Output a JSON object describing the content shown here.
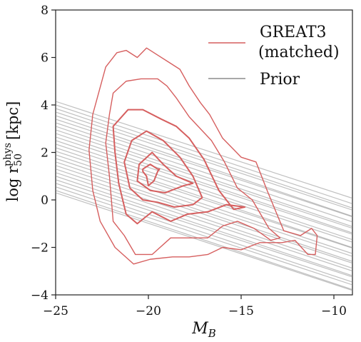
{
  "chart_data": {
    "type": "line",
    "title": "",
    "xlabel_main": "M",
    "xlabel_sub": "B",
    "ylabel_main": "log r",
    "ylabel_sub": "50",
    "ylabel_sup": "phys",
    "ylabel_unit": "[kpc]",
    "xlim": [
      -25,
      -9
    ],
    "ylim": [
      -4,
      8
    ],
    "xticks": [
      -25,
      -20,
      -15,
      -10
    ],
    "xtick_labels": [
      "−25",
      "−20",
      "−15",
      "−10"
    ],
    "yticks": [
      -4,
      -2,
      0,
      2,
      4,
      6,
      8
    ],
    "ytick_labels": [
      "−4",
      "−2",
      "0",
      "2",
      "4",
      "6",
      "8"
    ],
    "grid": false,
    "legend_position": "top-right",
    "colors": {
      "great3": "#d65f5f",
      "prior": "#8c8c8c"
    },
    "legend": [
      {
        "label_line1": "GREAT3",
        "label_line2": "(matched)",
        "color": "#d65f5f"
      },
      {
        "label_line1": "Prior",
        "label_line2": "",
        "color": "#8c8c8c"
      }
    ],
    "great3_contours": [
      {
        "level": 1,
        "points": [
          [
            -23.0,
            3.6
          ],
          [
            -22.3,
            5.6
          ],
          [
            -21.7,
            6.2
          ],
          [
            -21.2,
            6.3
          ],
          [
            -20.6,
            6.0
          ],
          [
            -20.1,
            6.4
          ],
          [
            -19.5,
            6.1
          ],
          [
            -18.9,
            5.8
          ],
          [
            -18.3,
            5.5
          ],
          [
            -17.8,
            4.8
          ],
          [
            -17.2,
            4.1
          ],
          [
            -16.7,
            3.6
          ],
          [
            -16.0,
            2.6
          ],
          [
            -15.0,
            1.8
          ],
          [
            -14.2,
            1.6
          ],
          [
            -13.6,
            0.4
          ],
          [
            -12.7,
            -1.3
          ],
          [
            -11.8,
            -1.5
          ],
          [
            -11.2,
            -1.2
          ],
          [
            -10.9,
            -1.5
          ],
          [
            -11.0,
            -2.3
          ],
          [
            -11.4,
            -2.3
          ],
          [
            -12.1,
            -1.7
          ],
          [
            -12.8,
            -1.8
          ],
          [
            -14.0,
            -1.8
          ],
          [
            -15.0,
            -2.1
          ],
          [
            -16.0,
            -2.0
          ],
          [
            -16.8,
            -2.3
          ],
          [
            -17.8,
            -2.4
          ],
          [
            -18.7,
            -2.4
          ],
          [
            -19.9,
            -2.5
          ],
          [
            -20.8,
            -2.7
          ],
          [
            -21.8,
            -2.0
          ],
          [
            -22.6,
            -0.9
          ],
          [
            -23.0,
            0.4
          ],
          [
            -23.2,
            2.1
          ]
        ]
      },
      {
        "level": 2,
        "points": [
          [
            -22.1,
            3.6
          ],
          [
            -21.9,
            4.5
          ],
          [
            -21.2,
            5.0
          ],
          [
            -20.4,
            5.1
          ],
          [
            -19.5,
            5.1
          ],
          [
            -19.0,
            4.8
          ],
          [
            -18.5,
            4.3
          ],
          [
            -17.8,
            3.5
          ],
          [
            -17.2,
            3.0
          ],
          [
            -16.6,
            2.5
          ],
          [
            -15.9,
            1.6
          ],
          [
            -15.2,
            0.5
          ],
          [
            -14.4,
            0.0
          ],
          [
            -13.5,
            -1.2
          ],
          [
            -12.9,
            -1.6
          ],
          [
            -13.4,
            -1.7
          ],
          [
            -14.3,
            -1.2
          ],
          [
            -15.2,
            -0.9
          ],
          [
            -16.0,
            -1.1
          ],
          [
            -16.8,
            -1.6
          ],
          [
            -17.8,
            -1.6
          ],
          [
            -18.8,
            -1.6
          ],
          [
            -19.8,
            -2.3
          ],
          [
            -20.7,
            -2.3
          ],
          [
            -21.3,
            -1.5
          ],
          [
            -21.9,
            -0.9
          ],
          [
            -22.1,
            1.0
          ],
          [
            -22.3,
            2.4
          ]
        ]
      },
      {
        "level": 3,
        "points": [
          [
            -21.9,
            3.1
          ],
          [
            -21.1,
            3.8
          ],
          [
            -20.3,
            3.8
          ],
          [
            -19.3,
            3.4
          ],
          [
            -18.5,
            3.1
          ],
          [
            -17.8,
            2.6
          ],
          [
            -17.0,
            1.7
          ],
          [
            -16.2,
            0.4
          ],
          [
            -15.4,
            -0.4
          ],
          [
            -14.8,
            -0.3
          ],
          [
            -15.8,
            -0.2
          ],
          [
            -16.8,
            -0.5
          ],
          [
            -17.9,
            -0.6
          ],
          [
            -18.8,
            -0.9
          ],
          [
            -19.8,
            -0.5
          ],
          [
            -20.6,
            -1.0
          ],
          [
            -21.2,
            -0.6
          ],
          [
            -21.6,
            0.7
          ],
          [
            -21.8,
            2.0
          ]
        ]
      },
      {
        "level": 4,
        "points": [
          [
            -20.9,
            2.5
          ],
          [
            -20.1,
            2.9
          ],
          [
            -19.2,
            2.5
          ],
          [
            -18.3,
            1.8
          ],
          [
            -17.6,
            1.0
          ],
          [
            -17.1,
            0.1
          ],
          [
            -17.6,
            -0.2
          ],
          [
            -18.6,
            -0.3
          ],
          [
            -19.5,
            -0.1
          ],
          [
            -20.3,
            0.0
          ],
          [
            -21.0,
            0.5
          ],
          [
            -21.3,
            1.6
          ]
        ]
      },
      {
        "level": 5,
        "points": [
          [
            -20.5,
            1.5
          ],
          [
            -19.8,
            2.0
          ],
          [
            -19.2,
            1.5
          ],
          [
            -18.5,
            1.0
          ],
          [
            -17.6,
            0.7
          ],
          [
            -18.1,
            0.6
          ],
          [
            -19.1,
            0.3
          ],
          [
            -19.9,
            0.4
          ],
          [
            -20.6,
            0.8
          ]
        ]
      },
      {
        "level": 6,
        "points": [
          [
            -20.3,
            1.3
          ],
          [
            -19.9,
            1.5
          ],
          [
            -19.5,
            1.3
          ],
          [
            -19.4,
            1.3
          ],
          [
            -19.5,
            1.2
          ],
          [
            -19.7,
            0.8
          ],
          [
            -20.0,
            0.6
          ],
          [
            -20.1,
            1.0
          ],
          [
            -20.3,
            1.2
          ]
        ]
      }
    ],
    "prior_lines": [
      {
        "a": 4.15,
        "b": -0.255
      },
      {
        "a": 4.0,
        "b": -0.26
      },
      {
        "a": 3.85,
        "b": -0.262
      },
      {
        "a": 3.7,
        "b": -0.258
      },
      {
        "a": 3.55,
        "b": -0.265
      },
      {
        "a": 3.4,
        "b": -0.257
      },
      {
        "a": 3.25,
        "b": -0.261
      },
      {
        "a": 3.1,
        "b": -0.264
      },
      {
        "a": 2.95,
        "b": -0.259
      },
      {
        "a": 2.8,
        "b": -0.262
      },
      {
        "a": 2.65,
        "b": -0.256
      },
      {
        "a": 2.5,
        "b": -0.261
      },
      {
        "a": 2.35,
        "b": -0.258
      },
      {
        "a": 2.2,
        "b": -0.263
      },
      {
        "a": 2.05,
        "b": -0.255
      },
      {
        "a": 1.9,
        "b": -0.26
      },
      {
        "a": 1.75,
        "b": -0.258
      },
      {
        "a": 1.6,
        "b": -0.262
      },
      {
        "a": 1.45,
        "b": -0.257
      },
      {
        "a": 1.3,
        "b": -0.261
      },
      {
        "a": 1.15,
        "b": -0.259
      },
      {
        "a": 1.0,
        "b": -0.262
      },
      {
        "a": 0.85,
        "b": -0.256
      },
      {
        "a": 0.7,
        "b": -0.26
      },
      {
        "a": 0.55,
        "b": -0.258
      },
      {
        "a": 0.4,
        "b": -0.261
      },
      {
        "a": 0.3,
        "b": -0.257
      }
    ]
  }
}
